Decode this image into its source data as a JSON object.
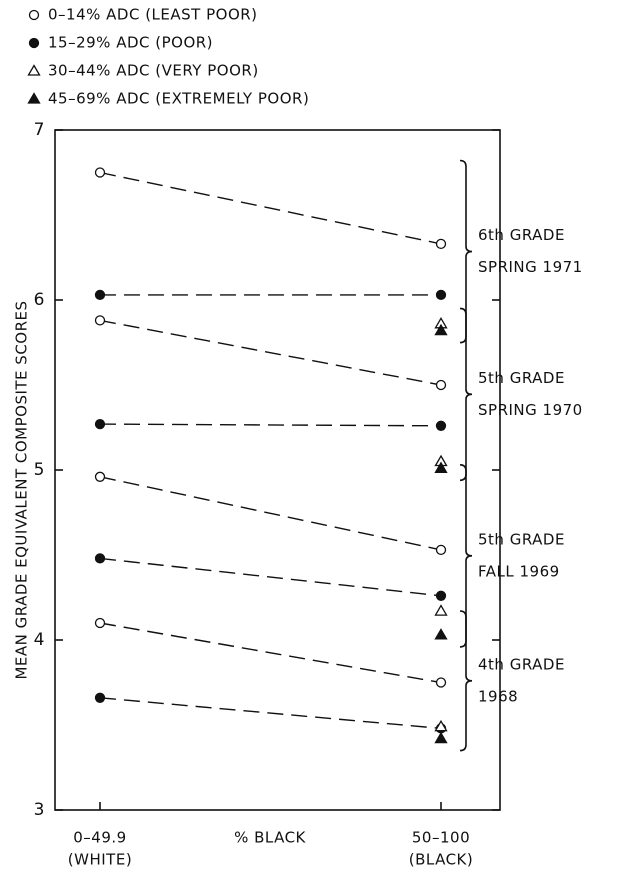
{
  "chart_data": {
    "type": "dot-line",
    "y_label": "MEAN GRADE EQUIVALENT COMPOSITE SCORES",
    "x_label": "% BLACK",
    "categories": [
      "0–49.9",
      "50–100"
    ],
    "category_sublabels": [
      "(WHITE)",
      "(BLACK)"
    ],
    "ylim": [
      3,
      7
    ],
    "yticks": [
      3,
      4,
      5,
      6,
      7
    ],
    "grades": [
      {
        "line1": "4th GRADE",
        "line2": "1968"
      },
      {
        "line1": "5th GRADE",
        "line2": "FALL 1969"
      },
      {
        "line1": "5th GRADE",
        "line2": "SPRING 1970"
      },
      {
        "line1": "6th GRADE",
        "line2": "SPRING 1971"
      }
    ],
    "series": [
      {
        "name": "0–14% ADC (LEAST POOR)",
        "marker": "open-circle",
        "values": [
          [
            4.1,
            3.75
          ],
          [
            4.96,
            4.53
          ],
          [
            5.88,
            5.5
          ],
          [
            6.75,
            6.33
          ]
        ]
      },
      {
        "name": "15–29% ADC (POOR)",
        "marker": "filled-circle",
        "values": [
          [
            3.66,
            3.48
          ],
          [
            4.48,
            4.26
          ],
          [
            5.27,
            5.26
          ],
          [
            6.03,
            6.03
          ]
        ]
      },
      {
        "name": "30–44% ADC (VERY POOR)",
        "marker": "open-triangle",
        "values": [
          [
            null,
            3.49
          ],
          [
            null,
            4.17
          ],
          [
            null,
            5.05
          ],
          [
            null,
            5.86
          ]
        ]
      },
      {
        "name": "45–69% ADC (EXTREMELY POOR)",
        "marker": "filled-triangle",
        "values": [
          [
            null,
            3.42
          ],
          [
            null,
            4.03
          ],
          [
            null,
            5.01
          ],
          [
            null,
            5.82
          ]
        ]
      }
    ]
  }
}
